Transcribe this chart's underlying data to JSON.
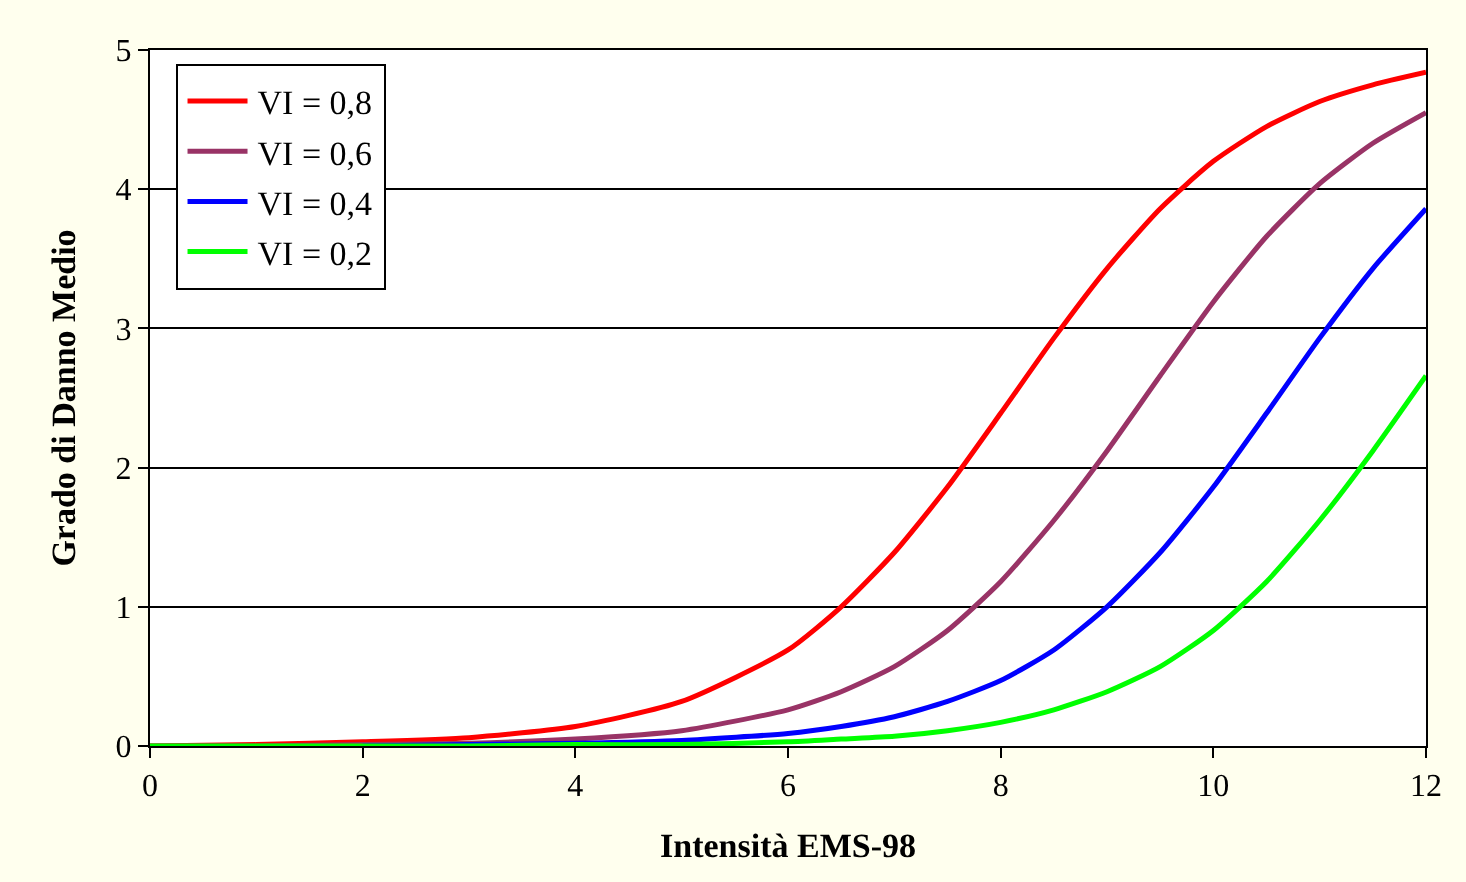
{
  "chart_data": {
    "type": "line",
    "xlabel": "Intensità EMS-98",
    "ylabel": "Grado di Danno Medio",
    "x": [
      0,
      1,
      2,
      3,
      4,
      5,
      6,
      6.5,
      7,
      7.5,
      8,
      8.5,
      9,
      9.5,
      10,
      10.5,
      11,
      11.5,
      12
    ],
    "series": [
      {
        "name": "VI = 0,8",
        "color": "#ff0000",
        "values": [
          0,
          0.01,
          0.03,
          0.06,
          0.14,
          0.32,
          0.69,
          1.0,
          1.39,
          1.86,
          2.39,
          2.93,
          3.43,
          3.86,
          4.2,
          4.45,
          4.63,
          4.75,
          4.84
        ]
      },
      {
        "name": "VI = 0,6",
        "color": "#993366",
        "values": [
          0,
          0,
          0.01,
          0.02,
          0.05,
          0.11,
          0.26,
          0.39,
          0.57,
          0.83,
          1.18,
          1.62,
          2.12,
          2.66,
          3.19,
          3.66,
          4.04,
          4.33,
          4.55
        ]
      },
      {
        "name": "VI = 0,4",
        "color": "#0000ff",
        "values": [
          null,
          null,
          0,
          0.01,
          0.02,
          0.04,
          0.09,
          0.14,
          0.21,
          0.32,
          0.47,
          0.69,
          1.0,
          1.39,
          1.86,
          2.39,
          2.93,
          3.43,
          3.86
        ]
      },
      {
        "name": "VI = 0,2",
        "color": "#00ff00",
        "values": [
          0,
          0,
          0,
          0,
          0.01,
          0.01,
          0.03,
          0.05,
          0.07,
          0.11,
          0.17,
          0.26,
          0.39,
          0.57,
          0.83,
          1.18,
          1.62,
          2.12,
          2.66
        ]
      }
    ],
    "xlim": [
      0,
      12
    ],
    "xticks": [
      0,
      2,
      4,
      6,
      8,
      10,
      12
    ],
    "ylim": [
      0,
      5
    ],
    "yticks": [
      0,
      1,
      2,
      3,
      4,
      5
    ],
    "grid": "y",
    "legend": "top left",
    "marker": "none",
    "line_style": "solid"
  }
}
